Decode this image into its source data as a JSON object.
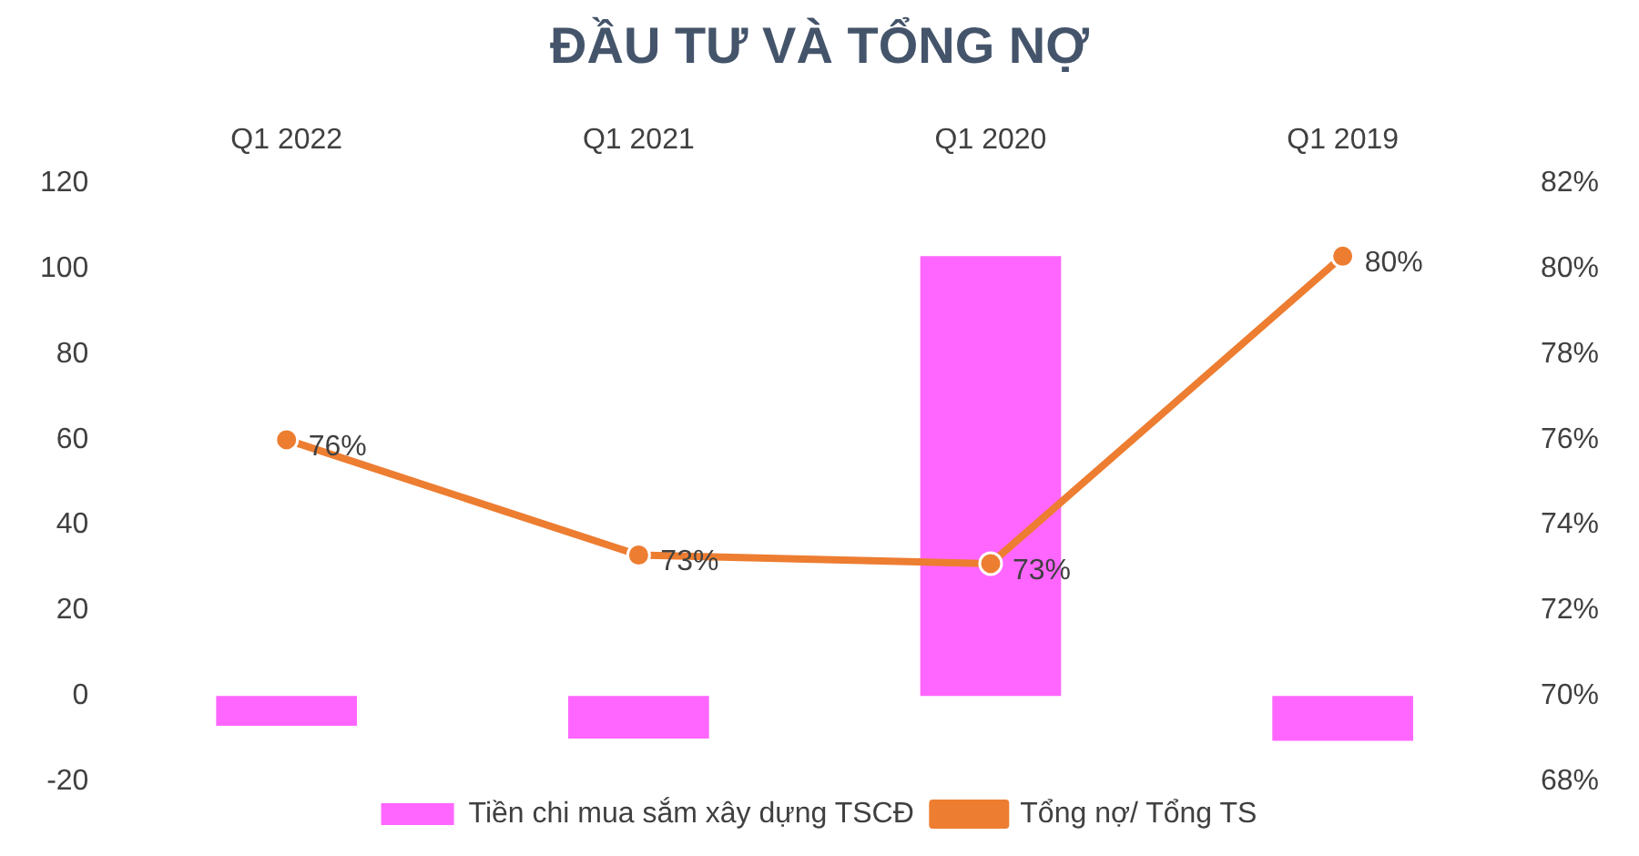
{
  "chart_data": {
    "type": "bar",
    "title": "ĐẦU TƯ VÀ TỔNG NỢ",
    "categories": [
      "Q1 2022",
      "Q1 2021",
      "Q1 2020",
      "Q1 2019"
    ],
    "series": [
      {
        "name": "Tiền chi mua sắm xây dựng TSCĐ",
        "color": "#ff66ff",
        "values": [
          -7,
          -10,
          103,
          -10.5
        ]
      },
      {
        "name": "Tổng nợ/ Tổng TS",
        "type": "line",
        "axis": "y2",
        "color": "#ed7d31",
        "values": [
          76.0,
          73.3,
          73.1,
          80.3
        ],
        "value_labels": [
          "76%",
          "73%",
          "73%",
          "80%"
        ]
      }
    ],
    "ylim": [
      -20,
      120
    ],
    "yticks": [
      -20,
      0,
      20,
      40,
      60,
      80,
      100,
      120
    ],
    "y2lim": [
      68,
      82
    ],
    "y2ticks": [
      {
        "value": 68,
        "label": "68%"
      },
      {
        "value": 70,
        "label": "70%"
      },
      {
        "value": 72,
        "label": "72%"
      },
      {
        "value": 74,
        "label": "74%"
      },
      {
        "value": 76,
        "label": "76%"
      },
      {
        "value": 78,
        "label": "78%"
      },
      {
        "value": 80,
        "label": "80%"
      },
      {
        "value": 82,
        "label": "82%"
      }
    ],
    "grid": false,
    "legend": "bottom",
    "marker": "circle",
    "line_style": "solid"
  }
}
